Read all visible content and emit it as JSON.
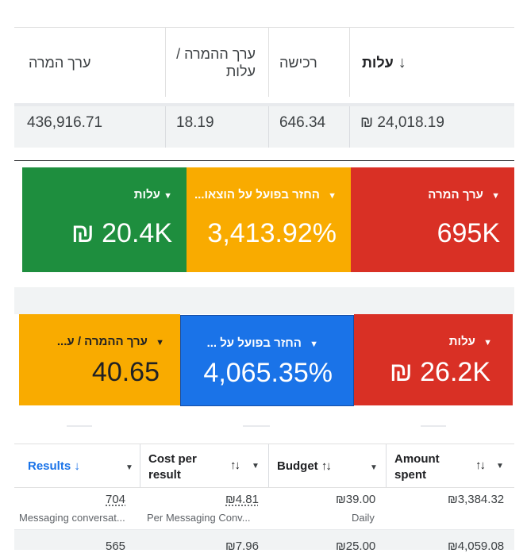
{
  "summary_table": {
    "columns": [
      {
        "label": "עלות",
        "sorted": "↓"
      },
      {
        "label": "רכישה"
      },
      {
        "label": "ערך ההמרה / עלות"
      },
      {
        "label": "ערך המרה"
      }
    ],
    "row": {
      "cost": "₪ 24,018.19",
      "purchase": "646.34",
      "conv_value_per_cost": "18.19",
      "conv_value": "436,916.71"
    }
  },
  "scorecards_row1": [
    {
      "label": "ערך המרה",
      "value": "695K",
      "color": "#d93025"
    },
    {
      "label": "החזר בפועל על הוצאו...",
      "value": "3,413.92%",
      "color": "#f9ab00"
    },
    {
      "label": "עלות",
      "value": "₪ 20.4K",
      "color": "#1e8e3e"
    }
  ],
  "scorecards_row2": [
    {
      "label": "עלות",
      "value": "₪ 26.2K",
      "color": "#d93025"
    },
    {
      "label": "החזר בפועל על ...",
      "value": "4,065.35%",
      "color": "#1a73e8"
    },
    {
      "label": "ערך ההמרה / ע...",
      "value": "40.65",
      "color": "#f9ab00"
    }
  ],
  "ads_table": {
    "columns": [
      {
        "label": "Results",
        "sort": "↓"
      },
      {
        "label_line1": "Cost per",
        "label_line2": "result",
        "sort": "↑↓"
      },
      {
        "label": "Budget",
        "sort": "↑↓"
      },
      {
        "label_line1": "Amount",
        "label_line2": "spent",
        "sort": "↑↓"
      }
    ],
    "rows": [
      {
        "results": "704",
        "results_sub": "Messaging conversat...",
        "cost_per_result": "₪4.81",
        "cost_sub": "Per Messaging Conv...",
        "budget": "₪39.00",
        "budget_sub": "Daily",
        "amount_spent": "₪3,384.32"
      }
    ],
    "partial_row": {
      "results": "565",
      "cost_per_result": "₪7.96",
      "budget": "₪25.00",
      "amount_spent": "₪4,059.08"
    }
  },
  "icons": {
    "caret": "▼",
    "sort_down": "↓"
  },
  "colors": {
    "green": "#1e8e3e",
    "amber": "#f9ab00",
    "red": "#d93025",
    "blue": "#1a73e8",
    "link_blue": "#1a73e8"
  }
}
